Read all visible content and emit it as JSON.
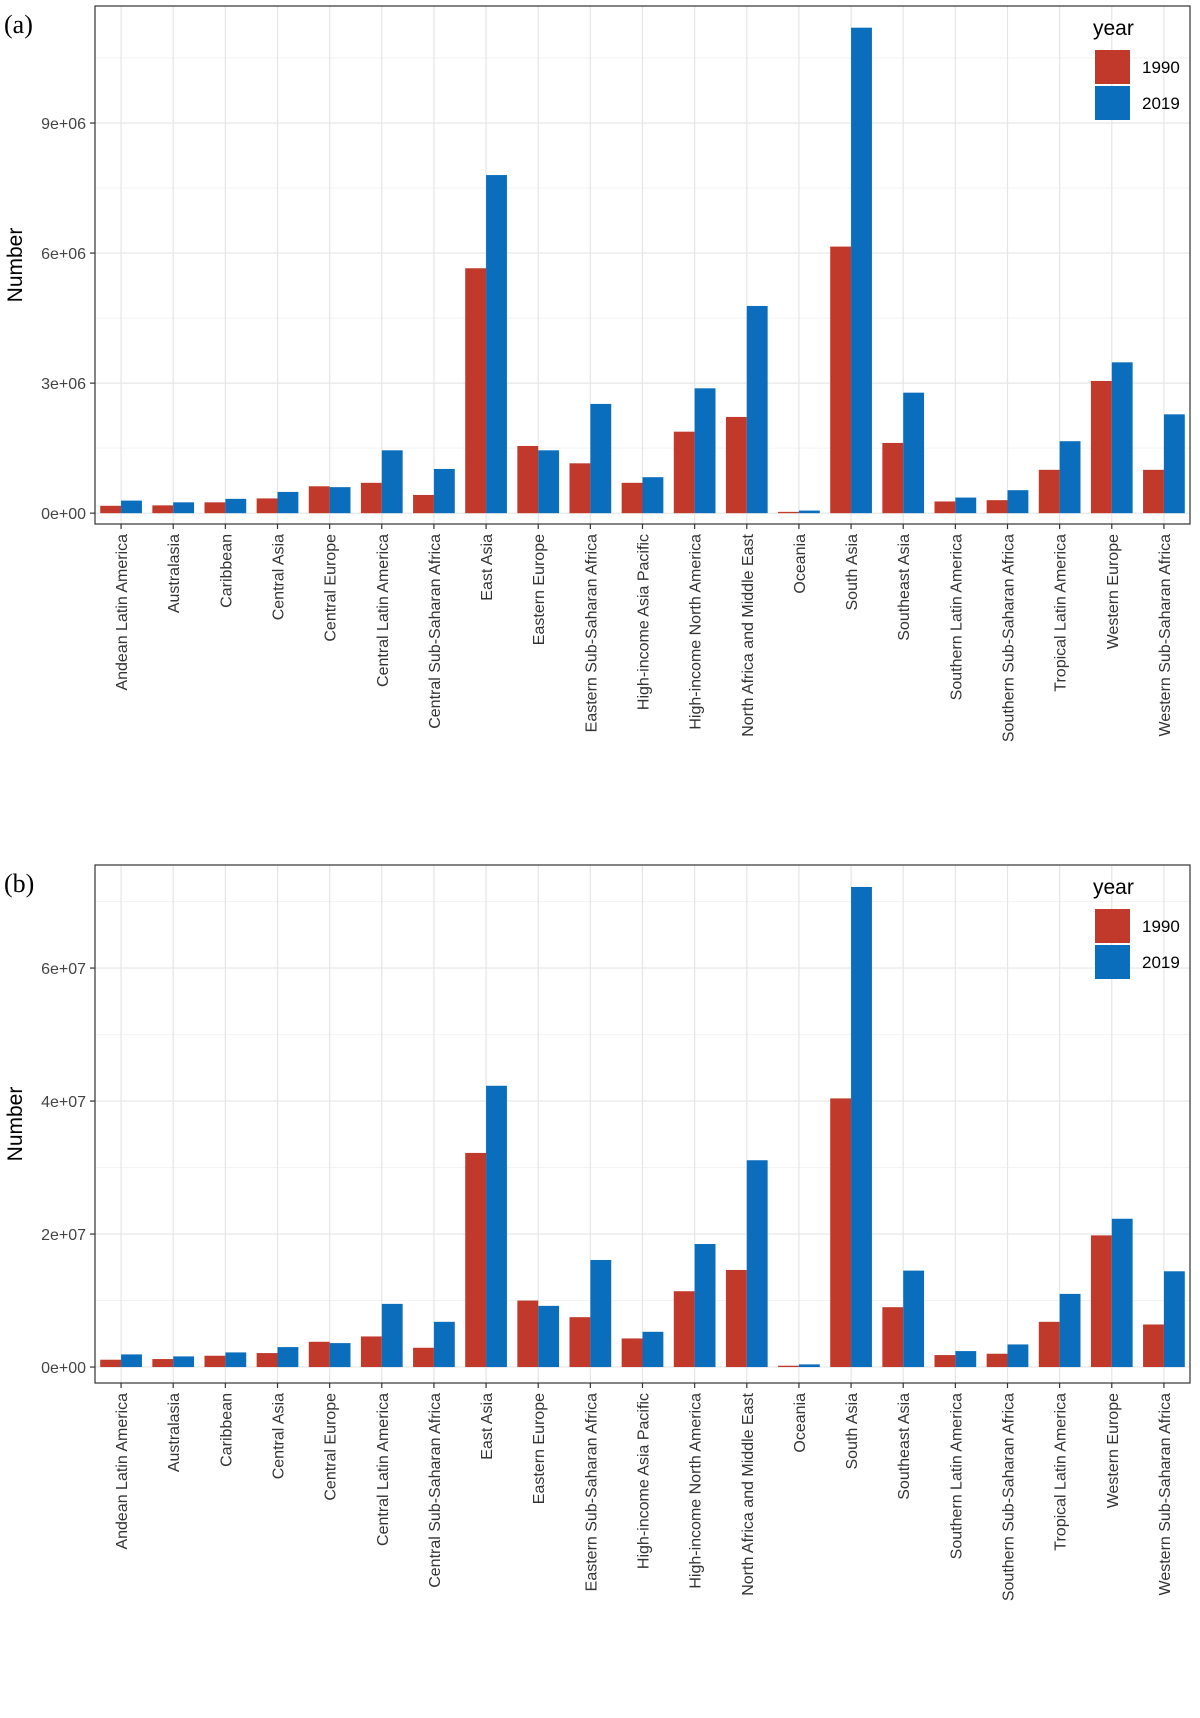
{
  "colors": {
    "y1990": "#c0392b",
    "y2019": "#0a6ebd",
    "grid_major": "#e6e6e6",
    "grid_minor": "#f3f3f3",
    "border": "#333333"
  },
  "chart_data": [
    {
      "panel_label": "(a)",
      "type": "bar",
      "ylabel": "Number",
      "legend_title": "year",
      "legend_position": "top-right",
      "grid": true,
      "ylim": [
        -250000,
        11700000
      ],
      "yticks": [
        0,
        3000000,
        6000000,
        9000000
      ],
      "ytick_labels": [
        "0e+00",
        "3e+06",
        "6e+06",
        "9e+06"
      ],
      "categories": [
        "Andean Latin America",
        "Australasia",
        "Caribbean",
        "Central Asia",
        "Central Europe",
        "Central Latin America",
        "Central Sub-Saharan Africa",
        "East Asia",
        "Eastern Europe",
        "Eastern Sub-Saharan Africa",
        "High-income Asia Pacific",
        "High-income North America",
        "North Africa and Middle East",
        "Oceania",
        "South Asia",
        "Southeast Asia",
        "Southern Latin America",
        "Southern Sub-Saharan Africa",
        "Tropical Latin America",
        "Western Europe",
        "Western Sub-Saharan Africa"
      ],
      "series": [
        {
          "name": "1990",
          "values": [
            170000,
            180000,
            250000,
            340000,
            620000,
            700000,
            420000,
            5650000,
            1550000,
            1150000,
            700000,
            1880000,
            2220000,
            30000,
            6150000,
            1620000,
            270000,
            300000,
            1000000,
            3050000,
            1000000
          ]
        },
        {
          "name": "2019",
          "values": [
            290000,
            250000,
            330000,
            490000,
            600000,
            1450000,
            1020000,
            7800000,
            1450000,
            2520000,
            830000,
            2880000,
            4780000,
            60000,
            11200000,
            2780000,
            360000,
            530000,
            1660000,
            3480000,
            2280000
          ]
        }
      ]
    },
    {
      "panel_label": "(b)",
      "type": "bar",
      "ylabel": "Number",
      "legend_title": "year",
      "legend_position": "top-right",
      "grid": true,
      "ylim": [
        -2400000,
        75500000
      ],
      "yticks": [
        0,
        20000000,
        40000000,
        60000000
      ],
      "ytick_labels": [
        "0e+00",
        "2e+07",
        "4e+07",
        "6e+07"
      ],
      "categories": [
        "Andean Latin America",
        "Australasia",
        "Caribbean",
        "Central Asia",
        "Central Europe",
        "Central Latin America",
        "Central Sub-Saharan Africa",
        "East Asia",
        "Eastern Europe",
        "Eastern Sub-Saharan Africa",
        "High-income Asia Pacific",
        "High-income North America",
        "North Africa and Middle East",
        "Oceania",
        "South Asia",
        "Southeast Asia",
        "Southern Latin America",
        "Southern Sub-Saharan Africa",
        "Tropical Latin America",
        "Western Europe",
        "Western Sub-Saharan Africa"
      ],
      "series": [
        {
          "name": "1990",
          "values": [
            1100000,
            1200000,
            1700000,
            2100000,
            3800000,
            4600000,
            2900000,
            32200000,
            10000000,
            7500000,
            4300000,
            11400000,
            14600000,
            200000,
            40400000,
            9000000,
            1800000,
            2000000,
            6800000,
            19800000,
            6400000
          ]
        },
        {
          "name": "2019",
          "values": [
            1900000,
            1600000,
            2200000,
            3000000,
            3600000,
            9500000,
            6800000,
            42300000,
            9200000,
            16100000,
            5300000,
            18500000,
            31100000,
            400000,
            72200000,
            14500000,
            2400000,
            3400000,
            11000000,
            22300000,
            14400000
          ]
        }
      ]
    }
  ]
}
